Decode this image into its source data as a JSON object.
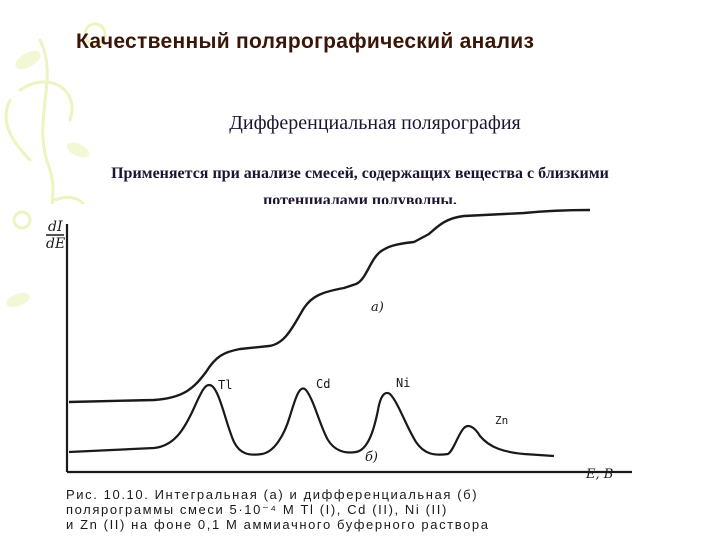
{
  "slide": {
    "title": "Качественный полярографический анализ",
    "subtitle": "Дифференциальная полярография",
    "intro_line1": "Применяется при анализе смесей, содержащих вещества с близкими",
    "intro_line2": "потенциалами полуволны."
  },
  "figure": {
    "y_axis_label_top": "dI",
    "y_axis_label_bottom": "dE",
    "x_axis_label": "E, В",
    "curve_a_label": "а)",
    "curve_b_label": "б)",
    "peaks": [
      {
        "label": "Tl"
      },
      {
        "label": "Cd"
      },
      {
        "label": "Ni"
      },
      {
        "label": "Zn"
      }
    ],
    "caption_line1": "Рис. 10.10. Интегральная (а) и дифференциальная (б)",
    "caption_line2": "полярограммы смеси 5·10⁻⁴ М Tl (I), Cd (II), Ni (II)",
    "caption_line3": "и Zn (II) на фоне 0,1 М аммиачного буферного раствора"
  },
  "colors": {
    "title": "#3a1608",
    "body_text": "#1e1430",
    "curve": "#1a1a1a",
    "decor": "#eef3c0"
  }
}
